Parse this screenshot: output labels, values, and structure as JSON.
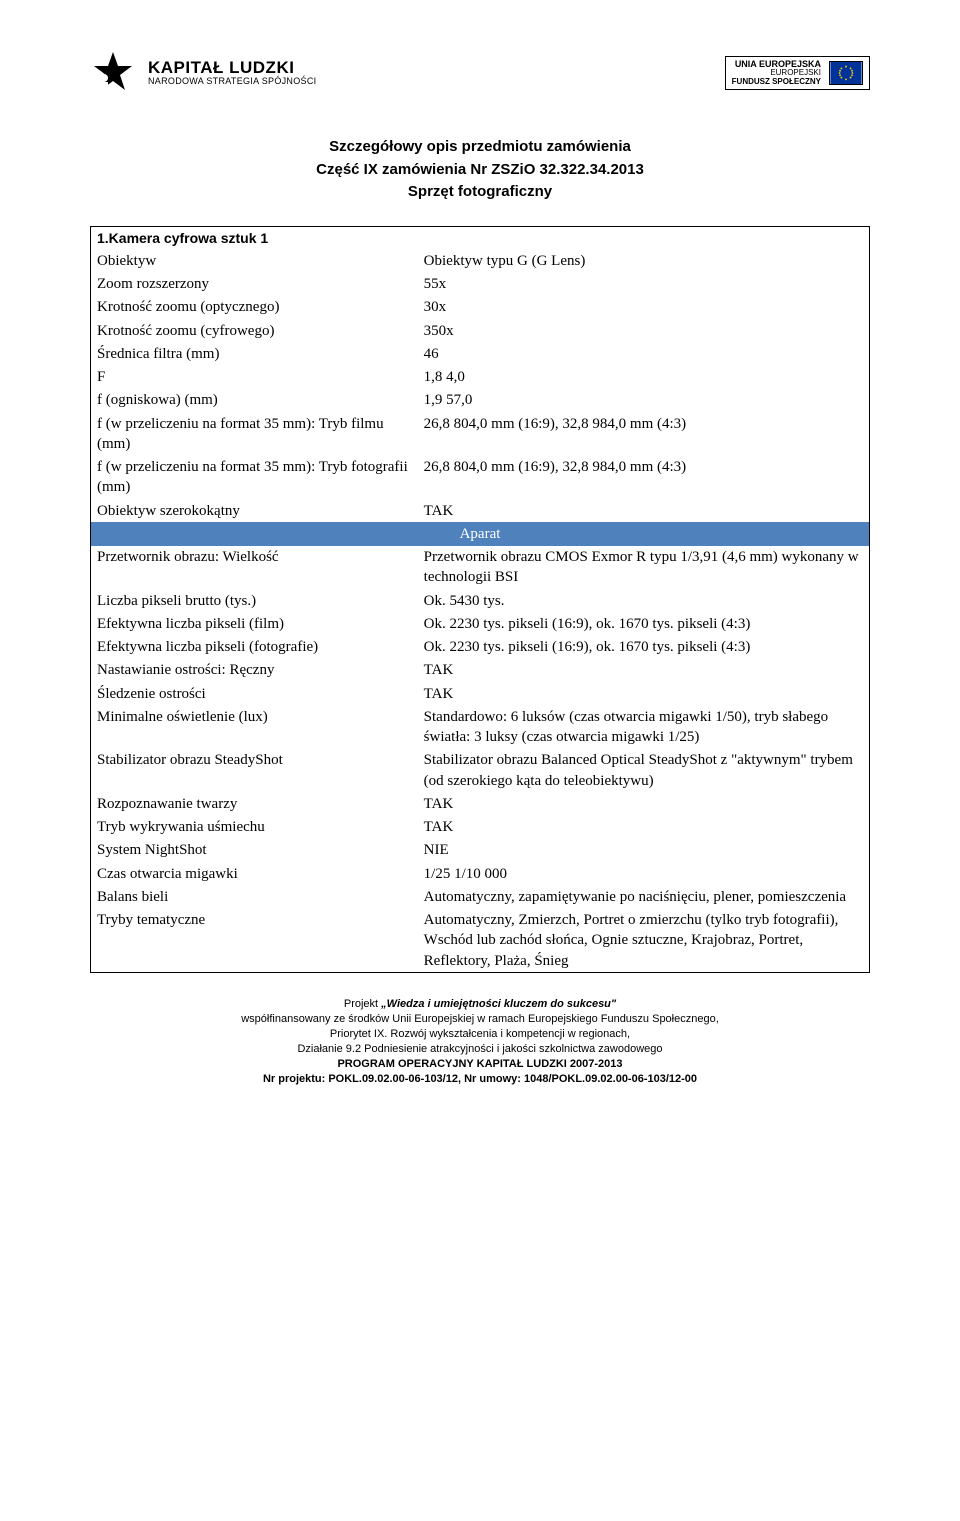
{
  "header": {
    "left_logo_title": "KAPITAŁ LUDZKI",
    "left_logo_sub": "NARODOWA STRATEGIA SPÓJNOŚCI",
    "right_l1": "UNIA EUROPEJSKA",
    "right_l2": "EUROPEJSKI",
    "right_l3": "FUNDUSZ SPOŁECZNY",
    "eu_flag_bg": "#003399",
    "eu_star_color": "#ffcc00"
  },
  "title": {
    "line1": "Szczegółowy opis przedmiotu zamówienia",
    "line2": "Część IX zamówienia Nr ZSZiO 32.322.34.2013",
    "line3": "Sprzęt fotograficzny"
  },
  "section1_label": "1.Kamera cyfrowa sztuk 1",
  "section_aparat": "Aparat",
  "section_header_bg": "#4f81bd",
  "section_header_color": "#ffffff",
  "rows_top": [
    {
      "k": "Obiektyw",
      "v": "Obiektyw typu G (G Lens)"
    },
    {
      "k": "Zoom rozszerzony",
      "v": "55x"
    },
    {
      "k": "Krotność zoomu (optycznego)",
      "v": "30x"
    },
    {
      "k": "Krotność zoomu (cyfrowego)",
      "v": "350x"
    },
    {
      "k": "Średnica filtra (mm)",
      "v": "46"
    },
    {
      "k": "F",
      "v": "1,8 4,0"
    },
    {
      "k": "f (ogniskowa) (mm)",
      "v": "1,9 57,0"
    },
    {
      "k": "f (w przeliczeniu na format 35 mm): Tryb filmu (mm)",
      "v": "26,8 804,0 mm (16:9), 32,8 984,0 mm (4:3)"
    },
    {
      "k": "f (w przeliczeniu na format 35 mm): Tryb fotografii (mm)",
      "v": "26,8 804,0 mm (16:9), 32,8 984,0 mm (4:3)"
    },
    {
      "k": "Obiektyw szerokokątny",
      "v": "TAK"
    }
  ],
  "rows_aparat": [
    {
      "k": "Przetwornik obrazu: Wielkość",
      "v": "Przetwornik obrazu CMOS Exmor R typu 1/3,91 (4,6 mm) wykonany w technologii BSI"
    },
    {
      "k": "Liczba pikseli brutto (tys.)",
      "v": "Ok. 5430 tys."
    },
    {
      "k": "Efektywna liczba pikseli (film)",
      "v": "Ok. 2230 tys. pikseli (16:9), ok. 1670 tys. pikseli (4:3)"
    },
    {
      "k": "Efektywna liczba pikseli (fotografie)",
      "v": "Ok. 2230 tys. pikseli (16:9), ok. 1670 tys. pikseli (4:3)"
    },
    {
      "k": "Nastawianie ostrości: Ręczny",
      "v": "TAK"
    },
    {
      "k": "Śledzenie ostrości",
      "v": "TAK"
    },
    {
      "k": "Minimalne oświetlenie (lux)",
      "v": "Standardowo: 6 luksów (czas otwarcia migawki 1/50), tryb słabego światła: 3 luksy (czas otwarcia migawki 1/25)"
    },
    {
      "k": "Stabilizator obrazu SteadyShot",
      "v": "Stabilizator obrazu Balanced Optical SteadyShot z \"aktywnym\" trybem (od szerokiego kąta do teleobiektywu)"
    },
    {
      "k": "Rozpoznawanie twarzy",
      "v": "TAK"
    },
    {
      "k": "Tryb wykrywania uśmiechu",
      "v": "TAK"
    },
    {
      "k": "System NightShot",
      "v": "NIE"
    },
    {
      "k": "Czas otwarcia migawki",
      "v": "1/25 1/10 000"
    },
    {
      "k": "Balans bieli",
      "v": "Automatyczny, zapamiętywanie po naciśnięciu, plener, pomieszczenia"
    },
    {
      "k": "Tryby tematyczne",
      "v": "Automatyczny, Zmierzch, Portret o zmierzchu (tylko tryb fotografii), Wschód lub zachód słońca, Ognie sztuczne, Krajobraz, Portret, Reflektory, Plaża, Śnieg"
    }
  ],
  "footer": {
    "l1a": "Projekt ",
    "l1b": "„Wiedza i umiejętności kluczem do sukcesu\"",
    "l2": "współfinansowany ze środków Unii Europejskiej w ramach Europejskiego Funduszu Społecznego,",
    "l3": "Priorytet IX. Rozwój wykształcenia i kompetencji w regionach,",
    "l4": "Działanie 9.2 Podniesienie atrakcyjności i jakości szkolnictwa zawodowego",
    "l5": "PROGRAM OPERACYJNY KAPITAŁ LUDZKI 2007-2013",
    "l6": "Nr projektu: POKL.09.02.00-06-103/12, Nr umowy: 1048/POKL.09.02.00-06-103/12-00"
  }
}
